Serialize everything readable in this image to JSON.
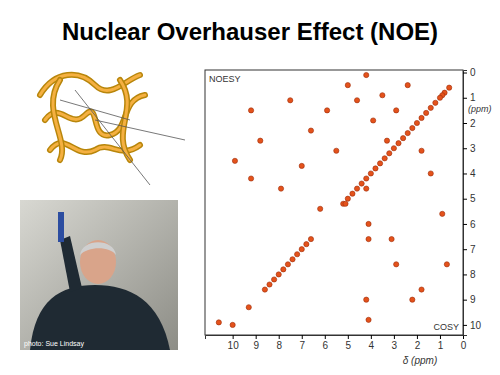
{
  "slide": {
    "title": "Nuclear Overhauser Effect (NOE)",
    "photo_credit": "photo: Sue Lindsay"
  },
  "chart_data": {
    "type": "scatter",
    "annotations": [
      "NOESY",
      "COSY"
    ],
    "x_label": "δ (ppm)",
    "y_label": "(ppm)",
    "x": [
      0.6,
      0.8,
      0.9,
      1.0,
      1.2,
      1.4,
      1.6,
      1.8,
      2.0,
      2.2,
      2.4,
      2.6,
      2.8,
      3.0,
      3.2,
      3.4,
      3.6,
      3.8,
      4.0,
      4.2,
      4.4,
      4.6,
      4.8,
      5.0,
      5.2,
      6.6,
      6.8,
      7.0,
      7.2,
      7.4,
      7.6,
      7.8,
      8.0,
      8.2,
      8.4,
      8.6,
      9.3,
      10.0,
      3.5,
      5.0,
      4.6,
      5.5,
      6.6,
      7.0,
      7.9,
      9.2,
      9.9,
      4.2,
      2.4,
      2.9,
      1.8,
      1.4,
      3.3,
      3.9,
      5.9,
      7.5,
      8.8,
      9.2,
      6.2,
      5.1,
      4.2,
      4.1,
      4.1,
      4.2,
      4.1,
      3.1,
      2.2,
      0.9,
      0.7,
      1.8,
      2.9,
      10.6
    ],
    "values": [
      0.6,
      0.8,
      0.9,
      1.0,
      1.2,
      1.4,
      1.6,
      1.8,
      2.0,
      2.2,
      2.4,
      2.6,
      2.8,
      3.0,
      3.2,
      3.4,
      3.6,
      3.8,
      4.0,
      4.2,
      4.4,
      4.6,
      4.8,
      5.0,
      5.2,
      6.6,
      6.8,
      7.0,
      7.2,
      7.4,
      7.6,
      7.8,
      8.0,
      8.2,
      8.4,
      8.6,
      9.3,
      10.0,
      0.9,
      0.5,
      1.1,
      3.1,
      2.3,
      3.7,
      4.6,
      4.2,
      3.5,
      0.1,
      0.5,
      1.5,
      3.1,
      4.0,
      2.7,
      1.9,
      1.5,
      1.1,
      2.7,
      1.5,
      5.4,
      5.2,
      4.6,
      6.0,
      6.6,
      9.0,
      9.8,
      6.6,
      9.0,
      5.6,
      7.6,
      8.6,
      7.6,
      9.9
    ],
    "color": "#e4521b",
    "marker": "circle",
    "xlim": [
      11.2,
      0
    ],
    "ylim": [
      10.4,
      -0.1
    ],
    "xticks": [
      10,
      9,
      8,
      7,
      6,
      5,
      4,
      3,
      2,
      1,
      0
    ],
    "yticks": [
      0,
      1,
      2,
      3,
      4,
      5,
      6,
      7,
      8,
      9,
      10
    ]
  }
}
